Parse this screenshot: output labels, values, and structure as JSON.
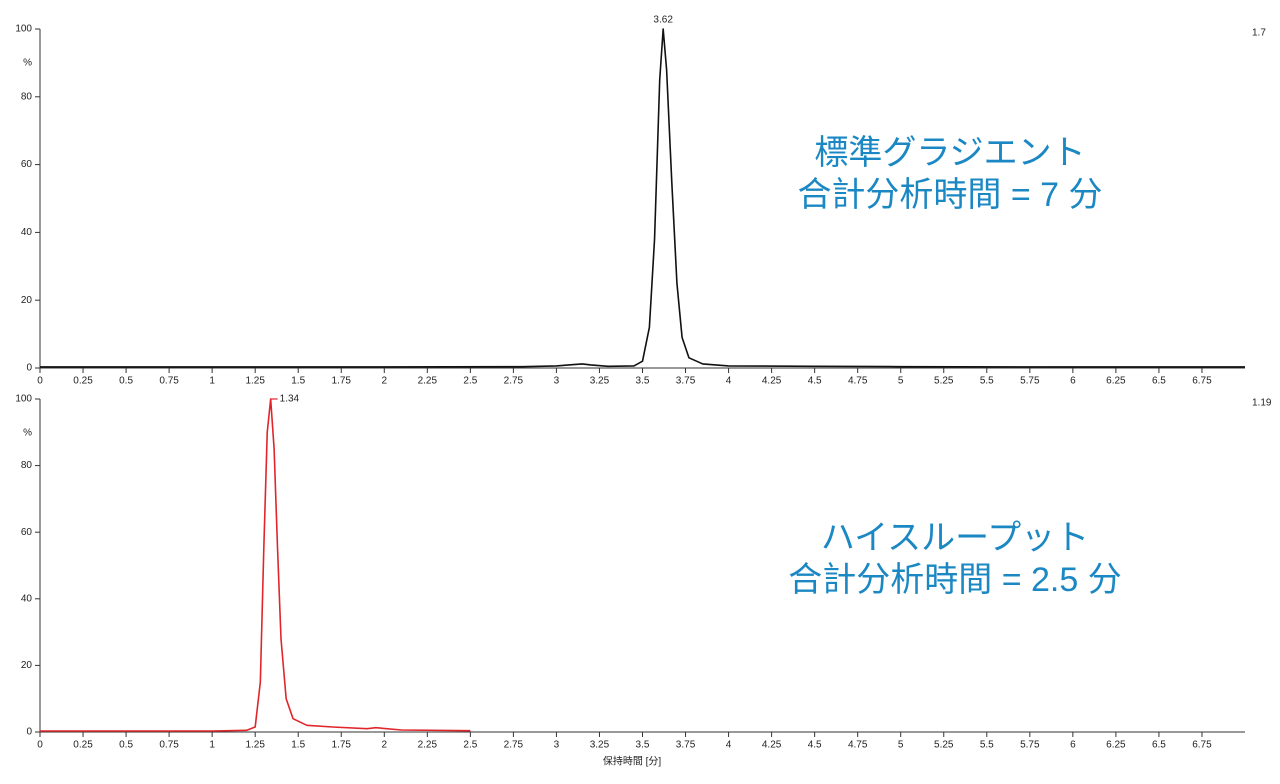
{
  "chart_data": [
    {
      "type": "line",
      "x": [
        0,
        1,
        2,
        2.8,
        3.0,
        3.1,
        3.15,
        3.2,
        3.3,
        3.45,
        3.5,
        3.54,
        3.57,
        3.6,
        3.62,
        3.64,
        3.67,
        3.7,
        3.73,
        3.77,
        3.85,
        4.0,
        4.5,
        5,
        6,
        7
      ],
      "values": [
        0.3,
        0.3,
        0.3,
        0.4,
        0.6,
        1.0,
        1.2,
        0.9,
        0.5,
        0.6,
        2,
        12,
        38,
        85,
        100,
        88,
        55,
        25,
        9,
        3,
        1.2,
        0.6,
        0.5,
        0.4,
        0.3,
        0.3
      ],
      "color": "#111111",
      "ylabel": "%",
      "peak_label": "3.62",
      "corner_label": "1.7",
      "annotations": [
        "標準グラジエント",
        "合計分析時間 = 7 分"
      ],
      "xlim": [
        0,
        7
      ],
      "xticks": [
        0,
        0.25,
        0.5,
        0.75,
        1,
        1.25,
        1.5,
        1.75,
        2,
        2.25,
        2.5,
        2.75,
        3,
        3.25,
        3.5,
        3.75,
        4,
        4.25,
        4.5,
        4.75,
        5,
        5.25,
        5.5,
        5.75,
        6,
        6.25,
        6.5,
        6.75
      ],
      "ylim": [
        0,
        100
      ],
      "yticks": [
        0,
        20,
        40,
        60,
        80,
        100
      ]
    },
    {
      "type": "line",
      "x": [
        0,
        0.5,
        1,
        1.2,
        1.25,
        1.28,
        1.3,
        1.32,
        1.34,
        1.36,
        1.38,
        1.4,
        1.43,
        1.47,
        1.55,
        1.7,
        1.9,
        1.95,
        2.1,
        2.5
      ],
      "values": [
        0.3,
        0.3,
        0.3,
        0.5,
        1.5,
        15,
        55,
        90,
        100,
        85,
        55,
        28,
        10,
        4,
        2,
        1.5,
        1,
        1.3,
        0.6,
        0.4
      ],
      "color": "#e0262b",
      "ylabel": "%",
      "xlabel": "保持時間 [分]",
      "peak_label": "1.34",
      "corner_label": "1.19",
      "annotations": [
        "ハイスループット",
        "合計分析時間 = 2.5 分"
      ],
      "xlim": [
        0,
        7
      ],
      "xticks": [
        0,
        0.25,
        0.5,
        0.75,
        1,
        1.25,
        1.5,
        1.75,
        2,
        2.25,
        2.5,
        2.75,
        3,
        3.25,
        3.5,
        3.75,
        4,
        4.25,
        4.5,
        4.75,
        5,
        5.25,
        5.5,
        5.75,
        6,
        6.25,
        6.5,
        6.75
      ],
      "ylim": [
        0,
        100
      ],
      "yticks": [
        0,
        20,
        40,
        60,
        80,
        100
      ]
    }
  ]
}
